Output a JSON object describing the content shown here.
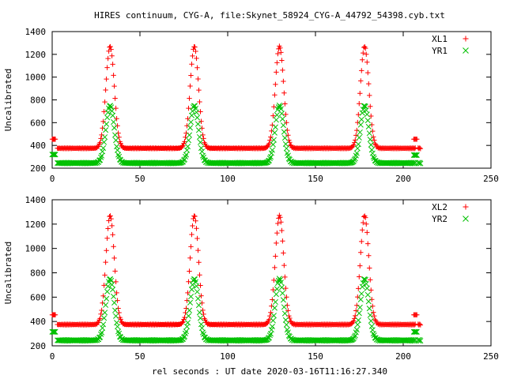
{
  "figure_title": "HIRES continuum, CYG-A, file:Skynet_58924_CYG-A_44792_54398.cyb.txt",
  "x_axis_label": "rel seconds : UT date 2020-03-16T11:16:27.340",
  "chart_data": [
    {
      "type": "scatter",
      "title": "HIRES continuum, CYG-A, file:Skynet_58924_CYG-A_44792_54398.cyb.txt",
      "xlabel": "",
      "ylabel": "Uncalibrated",
      "xlim": [
        0,
        250
      ],
      "ylim": [
        200,
        1400
      ],
      "x_ticks": [
        "0",
        "50",
        "100",
        "150",
        "200",
        "250"
      ],
      "y_ticks": [
        "200",
        "400",
        "600",
        "800",
        "1000",
        "1200",
        "1400"
      ],
      "grid": false,
      "legend_position": "top-right",
      "peaks": [
        33,
        81,
        129.5,
        178
      ],
      "series": [
        {
          "name": "XL1",
          "marker": "plus",
          "color": "#ff0000",
          "baseline": 375,
          "peak_value": 1270,
          "step": 0.45,
          "segments": [
            [
              0,
              2,
              455
            ],
            [
              3,
              207,
              375
            ],
            [
              206,
              208,
              455
            ],
            [
              208.5,
              210,
              375
            ]
          ]
        },
        {
          "name": "YR1",
          "marker": "cross",
          "color": "#00c000",
          "baseline": 245,
          "peak_value": 750,
          "step": 0.45,
          "segments": [
            [
              0,
              2,
              320
            ],
            [
              3,
              207,
              245
            ],
            [
              206,
              208,
              315
            ],
            [
              208.5,
              210,
              245
            ]
          ]
        }
      ]
    },
    {
      "type": "scatter",
      "title": "",
      "xlabel": "rel seconds : UT date 2020-03-16T11:16:27.340",
      "ylabel": "Uncalibrated",
      "xlim": [
        0,
        250
      ],
      "ylim": [
        200,
        1400
      ],
      "x_ticks": [
        "0",
        "50",
        "100",
        "150",
        "200",
        "250"
      ],
      "y_ticks": [
        "200",
        "400",
        "600",
        "800",
        "1000",
        "1200",
        "1400"
      ],
      "grid": false,
      "legend_position": "top-right",
      "peaks": [
        33,
        81,
        129.5,
        178
      ],
      "series": [
        {
          "name": "XL2",
          "marker": "plus",
          "color": "#ff0000",
          "baseline": 375,
          "peak_value": 1270,
          "step": 0.45,
          "segments": [
            [
              0,
              2,
              455
            ],
            [
              3,
              207,
              375
            ],
            [
              206,
              208,
              455
            ],
            [
              208.5,
              210,
              375
            ]
          ]
        },
        {
          "name": "YR2",
          "marker": "cross",
          "color": "#00c000",
          "baseline": 245,
          "peak_value": 750,
          "step": 0.45,
          "segments": [
            [
              0,
              2,
              315
            ],
            [
              3,
              207,
              245
            ],
            [
              206,
              208,
              315
            ],
            [
              208.5,
              210,
              245
            ]
          ]
        }
      ]
    }
  ]
}
